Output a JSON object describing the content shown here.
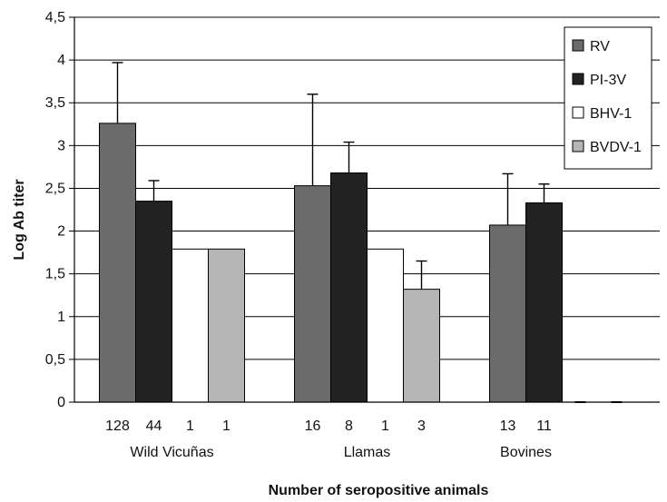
{
  "chart_data": {
    "type": "bar",
    "title": "",
    "ylabel": "Log Ab titer",
    "xlabel": "Number of seropositive animals",
    "ylim": [
      0,
      4.5
    ],
    "yticks": [
      "0",
      "0,5",
      "1",
      "1,5",
      "2",
      "2,5",
      "3",
      "3,5",
      "4",
      "4,5"
    ],
    "grid": true,
    "legend_position": "top-right",
    "categories": [
      "Wild Vicuñas",
      "Llamas",
      "Bovines"
    ],
    "series": [
      {
        "name": "RV",
        "color": "#6b6b6b",
        "values": [
          3.26,
          2.53,
          2.07
        ],
        "errors": [
          0.71,
          1.07,
          0.6
        ],
        "counts": [
          "128",
          "16",
          "13"
        ]
      },
      {
        "name": "PI-3V",
        "color": "#222222",
        "values": [
          2.35,
          2.68,
          2.33
        ],
        "errors": [
          0.24,
          0.36,
          0.22
        ],
        "counts": [
          "44",
          "8",
          "11"
        ]
      },
      {
        "name": "BHV-1",
        "color": "#ffffff",
        "values": [
          1.79,
          1.79,
          0
        ],
        "errors": [
          0,
          0,
          0
        ],
        "counts": [
          "1",
          "1",
          ""
        ]
      },
      {
        "name": "BVDV-1",
        "color": "#b5b5b5",
        "values": [
          1.79,
          1.32,
          0
        ],
        "errors": [
          0,
          0.33,
          0
        ],
        "counts": [
          "1",
          "3",
          ""
        ]
      }
    ]
  }
}
